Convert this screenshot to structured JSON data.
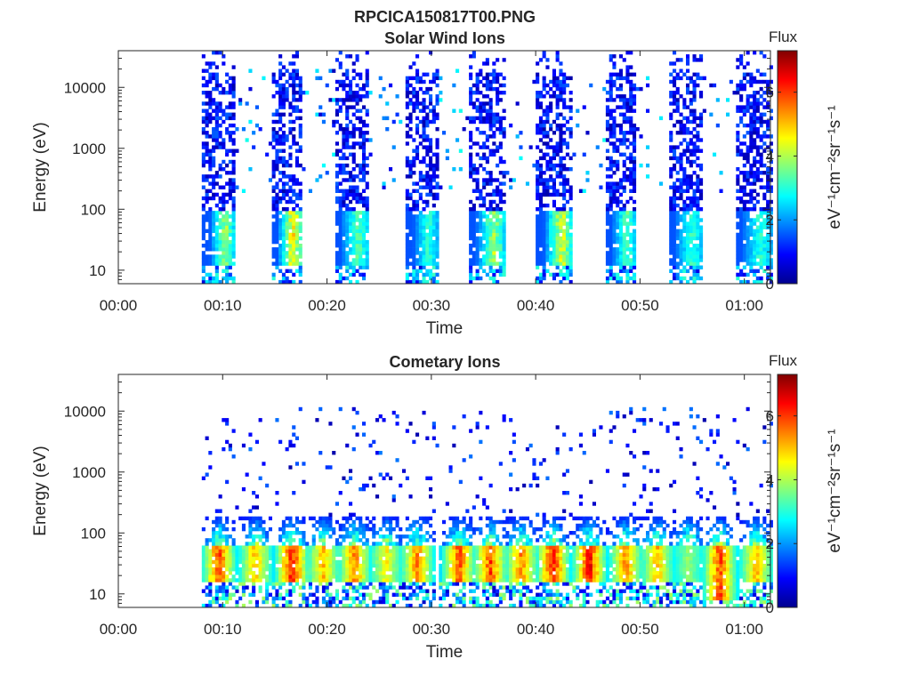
{
  "chart_data": [
    {
      "type": "heatmap",
      "title": "RPCICA150817T00.PNG",
      "subtitle": "Solar Wind Ions",
      "xlabel": "Time",
      "ylabel": "Energy (eV)",
      "x_ticks": [
        "00:00",
        "00:10",
        "00:20",
        "00:30",
        "00:40",
        "00:50",
        "01:00"
      ],
      "xlim_minutes": [
        0,
        62.5
      ],
      "y_scale": "log",
      "y_ticks": [
        "10",
        "100",
        "1000",
        "10000"
      ],
      "ylim_eV": [
        6,
        40000
      ],
      "colorbar": {
        "title": "Flux",
        "label": "eV⁻¹cm⁻²sr⁻¹s⁻¹",
        "ticks": [
          "0",
          "2",
          "4",
          "6"
        ],
        "range": [
          0,
          7.3
        ],
        "colormap": "jet"
      },
      "bursts": [
        {
          "start_min": 8.0,
          "end_min": 11.0,
          "low_energy_core_eV": [
            20,
            60
          ],
          "peak_flux": 4.5
        },
        {
          "start_min": 14.5,
          "end_min": 17.5,
          "low_energy_core_eV": [
            20,
            60
          ],
          "peak_flux": 5.5
        },
        {
          "start_min": 20.5,
          "end_min": 24.0,
          "low_energy_core_eV": [
            20,
            60
          ],
          "peak_flux": 3.8
        },
        {
          "start_min": 27.5,
          "end_min": 30.5,
          "low_energy_core_eV": [
            20,
            60
          ],
          "peak_flux": 3.5
        },
        {
          "start_min": 33.5,
          "end_min": 37.0,
          "low_energy_core_eV": [
            20,
            60
          ],
          "peak_flux": 4.5
        },
        {
          "start_min": 40.0,
          "end_min": 43.5,
          "low_energy_core_eV": [
            20,
            60
          ],
          "peak_flux": 5.0
        },
        {
          "start_min": 46.5,
          "end_min": 49.5,
          "low_energy_core_eV": [
            20,
            60
          ],
          "peak_flux": 3.8
        },
        {
          "start_min": 52.5,
          "end_min": 56.0,
          "low_energy_core_eV": [
            20,
            60
          ],
          "peak_flux": 3.5
        },
        {
          "start_min": 59.0,
          "end_min": 62.5,
          "low_energy_core_eV": [
            20,
            60
          ],
          "peak_flux": 3.5
        }
      ]
    },
    {
      "type": "heatmap",
      "title": "Cometary Ions",
      "xlabel": "Time",
      "ylabel": "Energy (eV)",
      "x_ticks": [
        "00:00",
        "00:10",
        "00:20",
        "00:30",
        "00:40",
        "00:50",
        "01:00"
      ],
      "xlim_minutes": [
        0,
        62.5
      ],
      "y_scale": "log",
      "y_ticks": [
        "10",
        "100",
        "1000",
        "10000"
      ],
      "ylim_eV": [
        6,
        40000
      ],
      "colorbar": {
        "title": "Flux",
        "label": "eV⁻¹cm⁻²sr⁻¹s⁻¹",
        "ticks": [
          "0",
          "2",
          "4",
          "6"
        ],
        "range": [
          0,
          7.3
        ],
        "colormap": "jet"
      },
      "bursts": [
        {
          "center_min": 9.5,
          "core_eV": [
            15,
            60
          ],
          "peak_flux": 6.5
        },
        {
          "center_min": 13.0,
          "core_eV": [
            15,
            60
          ],
          "peak_flux": 5.5
        },
        {
          "center_min": 16.5,
          "core_eV": [
            15,
            60
          ],
          "peak_flux": 7.0
        },
        {
          "center_min": 19.5,
          "core_eV": [
            15,
            60
          ],
          "peak_flux": 5.5
        },
        {
          "center_min": 22.5,
          "core_eV": [
            15,
            60
          ],
          "peak_flux": 6.0
        },
        {
          "center_min": 25.5,
          "core_eV": [
            15,
            60
          ],
          "peak_flux": 5.0
        },
        {
          "center_min": 28.5,
          "core_eV": [
            15,
            60
          ],
          "peak_flux": 6.0
        },
        {
          "center_min": 32.5,
          "core_eV": [
            15,
            60
          ],
          "peak_flux": 6.5
        },
        {
          "center_min": 35.5,
          "core_eV": [
            15,
            60
          ],
          "peak_flux": 6.5
        },
        {
          "center_min": 38.5,
          "core_eV": [
            15,
            60
          ],
          "peak_flux": 6.0
        },
        {
          "center_min": 41.5,
          "core_eV": [
            15,
            60
          ],
          "peak_flux": 7.0
        },
        {
          "center_min": 45.0,
          "core_eV": [
            15,
            60
          ],
          "peak_flux": 7.0
        },
        {
          "center_min": 48.5,
          "core_eV": [
            15,
            60
          ],
          "peak_flux": 6.0
        },
        {
          "center_min": 51.5,
          "core_eV": [
            15,
            60
          ],
          "peak_flux": 5.5
        },
        {
          "center_min": 54.5,
          "core_eV": [
            15,
            60
          ],
          "peak_flux": 4.0
        },
        {
          "center_min": 57.5,
          "core_eV": [
            8,
            60
          ],
          "peak_flux": 6.5
        },
        {
          "center_min": 61.0,
          "core_eV": [
            15,
            60
          ],
          "peak_flux": 5.5
        }
      ]
    }
  ]
}
